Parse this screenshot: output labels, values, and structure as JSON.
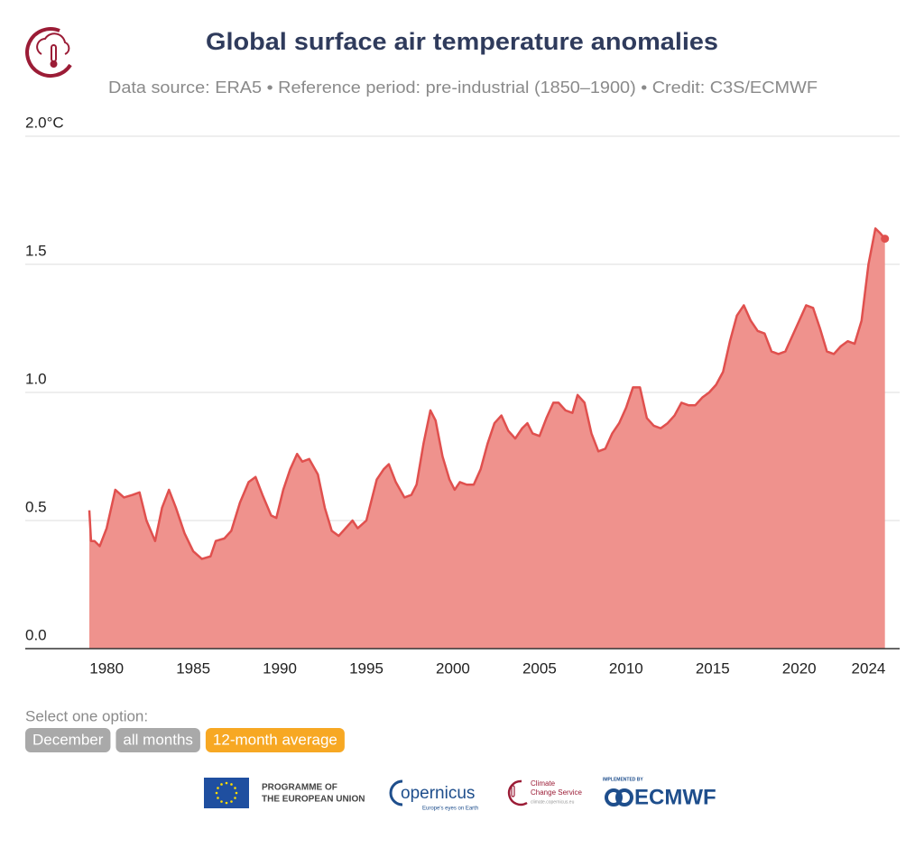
{
  "chart_data": {
    "type": "area",
    "title": "Global surface air temperature anomalies",
    "subtitle": "Data source: ERA5 • Reference period: pre-industrial (1850–1900) • Credit: C3S/ECMWF",
    "x": [
      1979.0,
      1979.1,
      1979.3,
      1979.6,
      1980.0,
      1980.5,
      1981.0,
      1981.5,
      1981.9,
      1982.3,
      1982.8,
      1983.2,
      1983.6,
      1984.0,
      1984.5,
      1985.0,
      1985.5,
      1986.0,
      1986.3,
      1986.8,
      1987.2,
      1987.7,
      1988.2,
      1988.6,
      1989.0,
      1989.5,
      1989.8,
      1990.2,
      1990.6,
      1991.0,
      1991.3,
      1991.7,
      1992.2,
      1992.6,
      1993.0,
      1993.4,
      1993.8,
      1994.2,
      1994.5,
      1995.0,
      1995.3,
      1995.6,
      1996.0,
      1996.3,
      1996.7,
      1997.2,
      1997.6,
      1997.9,
      1998.3,
      1998.7,
      1999.0,
      1999.4,
      1999.8,
      2000.1,
      2000.4,
      2000.8,
      2001.2,
      2001.6,
      2002.0,
      2002.4,
      2002.8,
      2003.2,
      2003.6,
      2004.0,
      2004.3,
      2004.6,
      2005.0,
      2005.4,
      2005.8,
      2006.1,
      2006.5,
      2006.9,
      2007.2,
      2007.6,
      2008.0,
      2008.4,
      2008.8,
      2009.2,
      2009.6,
      2010.0,
      2010.4,
      2010.8,
      2011.2,
      2011.6,
      2012.0,
      2012.4,
      2012.8,
      2013.2,
      2013.6,
      2014.0,
      2014.4,
      2014.8,
      2015.2,
      2015.6,
      2016.0,
      2016.4,
      2016.8,
      2017.2,
      2017.6,
      2018.0,
      2018.4,
      2018.8,
      2019.2,
      2019.6,
      2020.0,
      2020.4,
      2020.8,
      2021.2,
      2021.6,
      2022.0,
      2022.4,
      2022.8,
      2023.2,
      2023.6,
      2024.0,
      2024.4,
      2024.7,
      2024.95
    ],
    "values": [
      0.54,
      0.42,
      0.42,
      0.4,
      0.47,
      0.62,
      0.59,
      0.6,
      0.61,
      0.5,
      0.42,
      0.55,
      0.62,
      0.55,
      0.45,
      0.38,
      0.35,
      0.36,
      0.42,
      0.43,
      0.46,
      0.57,
      0.65,
      0.67,
      0.6,
      0.52,
      0.51,
      0.62,
      0.7,
      0.76,
      0.73,
      0.74,
      0.68,
      0.55,
      0.46,
      0.44,
      0.47,
      0.5,
      0.47,
      0.5,
      0.58,
      0.66,
      0.7,
      0.72,
      0.65,
      0.59,
      0.6,
      0.64,
      0.8,
      0.93,
      0.89,
      0.75,
      0.66,
      0.62,
      0.65,
      0.64,
      0.64,
      0.7,
      0.8,
      0.88,
      0.91,
      0.85,
      0.82,
      0.86,
      0.88,
      0.84,
      0.83,
      0.9,
      0.96,
      0.96,
      0.93,
      0.92,
      0.99,
      0.96,
      0.84,
      0.77,
      0.78,
      0.84,
      0.88,
      0.94,
      1.02,
      1.02,
      0.9,
      0.87,
      0.86,
      0.88,
      0.91,
      0.96,
      0.95,
      0.95,
      0.98,
      1.0,
      1.03,
      1.08,
      1.2,
      1.3,
      1.34,
      1.28,
      1.24,
      1.23,
      1.16,
      1.15,
      1.16,
      1.22,
      1.28,
      1.34,
      1.33,
      1.25,
      1.16,
      1.15,
      1.18,
      1.2,
      1.19,
      1.28,
      1.5,
      1.64,
      1.62,
      1.6
    ],
    "color": "#e0504e",
    "fill": "#ef928d",
    "xlim": [
      1975.3,
      2025.8
    ],
    "xticks": [
      1980,
      1985,
      1990,
      1995,
      2000,
      2005,
      2010,
      2015,
      2020,
      2024
    ],
    "ylim": [
      0,
      2.0
    ],
    "yticks": [
      {
        "value": 0,
        "label": "0.0"
      },
      0.5,
      {
        "value": 1,
        "label": "1.0"
      },
      1.5,
      {
        "value": 2,
        "label": "2.0°C"
      }
    ],
    "grid": true
  },
  "controls": {
    "prompt": "Select one option:",
    "options": [
      {
        "label": "December",
        "active": false
      },
      {
        "label": "all months",
        "active": false
      },
      {
        "label": "12-month average",
        "active": true
      }
    ]
  },
  "footer": {
    "eu_line1": "PROGRAMME OF",
    "eu_line2": "THE EUROPEAN UNION",
    "copernicus": "opernicus",
    "copernicus_tagline": "Europe's eyes on Earth",
    "c3s_line1": "Climate",
    "c3s_line2": "Change Service",
    "c3s_url": "climate.copernicus.eu",
    "ecmwf_label": "IMPLEMENTED BY",
    "ecmwf": "ECMWF"
  }
}
